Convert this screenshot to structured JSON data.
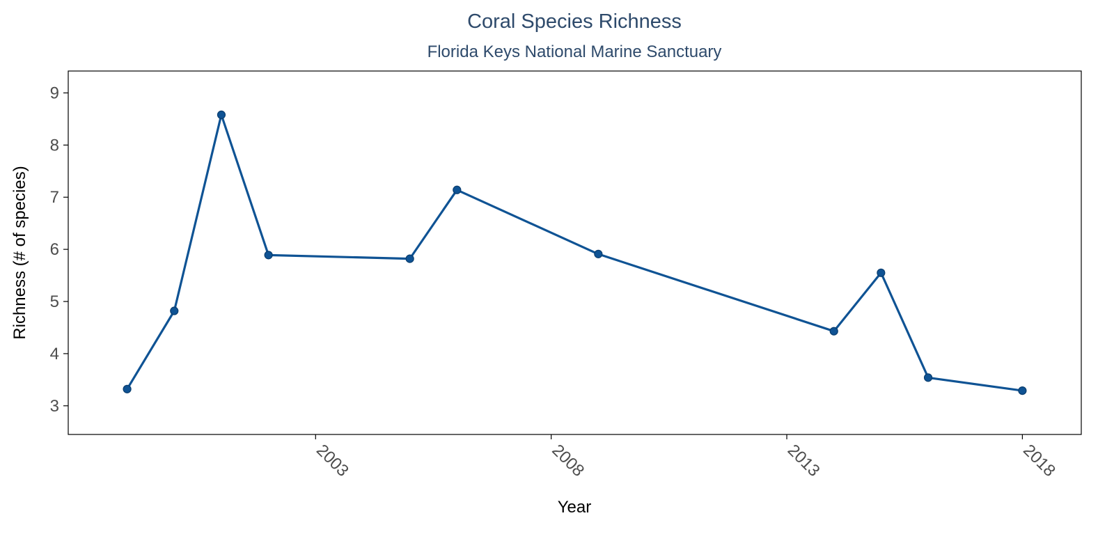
{
  "chart_data": {
    "type": "line",
    "title": "Coral Species Richness",
    "subtitle": "Florida Keys National Marine Sanctuary",
    "xlabel": "Year",
    "ylabel": "Richness (# of species)",
    "x": [
      1999,
      2000,
      2001,
      2002,
      2005,
      2006,
      2009,
      2014,
      2015,
      2016,
      2018
    ],
    "values": [
      3.32,
      4.82,
      8.58,
      5.89,
      5.82,
      7.14,
      5.91,
      4.43,
      5.55,
      3.54,
      3.29
    ],
    "xlim": [
      1997.75,
      2019.25
    ],
    "ylim": [
      2.45,
      9.42
    ],
    "x_ticks": [
      2003,
      2008,
      2013,
      2018
    ],
    "x_tick_labels": [
      "2003",
      "2008",
      "2013",
      "2018"
    ],
    "y_ticks": [
      3,
      4,
      5,
      6,
      7,
      8,
      9
    ],
    "y_tick_labels": [
      "3",
      "4",
      "5",
      "6",
      "7",
      "8",
      "9"
    ],
    "grid": false,
    "legend": "none",
    "colors": {
      "line": "#0f5394",
      "marker": "#0f5394",
      "marker_stroke": "#0a3d6e",
      "title": "#2e4a6b",
      "axis": "#000000"
    }
  }
}
